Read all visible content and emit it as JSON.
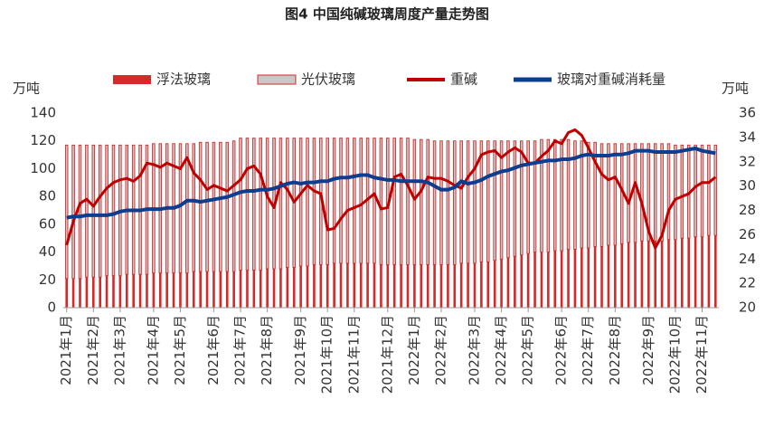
{
  "chart_data": {
    "type": "bar-line",
    "title": "图4 中国纯碱玻璃周度产量走势图",
    "ylabel": "万吨",
    "y2label": "万吨",
    "categories": [
      "2021年1月",
      null,
      null,
      null,
      "2021年2月",
      null,
      null,
      null,
      "2021年3月",
      null,
      null,
      null,
      null,
      "2021年4月",
      null,
      null,
      null,
      "2021年5月",
      null,
      null,
      null,
      null,
      "2021年6月",
      null,
      null,
      null,
      "2021年7月",
      null,
      null,
      null,
      "2021年8月",
      null,
      null,
      null,
      null,
      "2021年9月",
      null,
      null,
      null,
      "2021年10月",
      null,
      null,
      null,
      "2021年11月",
      null,
      null,
      null,
      null,
      "2021年12月",
      null,
      null,
      null,
      "2022年1月",
      null,
      null,
      null,
      "2022年2月",
      null,
      null,
      null,
      null,
      "2022年3月",
      null,
      null,
      null,
      "2022年4月",
      null,
      null,
      null,
      "2022年5月",
      null,
      null,
      null,
      null,
      "2022年6月",
      null,
      null,
      null,
      "2022年7月",
      null,
      null,
      null,
      "2022年8月",
      null,
      null,
      null,
      null,
      "2022年9月",
      null,
      null,
      null,
      "2022年10月",
      null,
      null,
      null,
      "2022年11月",
      null,
      null
    ],
    "ylim": [
      0,
      140
    ],
    "yticks": [
      0,
      20,
      40,
      60,
      80,
      100,
      120,
      140
    ],
    "y2lim": [
      20,
      36
    ],
    "y2ticks": [
      20,
      22,
      24,
      26,
      28,
      30,
      32,
      34,
      36
    ],
    "grid": false,
    "stacked": true,
    "legend": "top",
    "series": [
      {
        "name": "浮法玻璃",
        "kind": "bar",
        "color": "#d42a2a",
        "values": [
          21,
          21,
          21,
          22,
          22,
          22,
          23,
          23,
          23,
          24,
          24,
          24,
          24,
          25,
          25,
          25,
          25,
          25,
          25,
          26,
          26,
          26,
          26,
          26,
          26,
          26,
          27,
          27,
          27,
          27,
          28,
          28,
          28,
          29,
          29,
          30,
          30,
          31,
          31,
          31,
          32,
          32,
          32,
          32,
          32,
          32,
          32,
          31,
          31,
          31,
          31,
          31,
          31,
          31,
          31,
          31,
          31,
          31,
          31,
          32,
          32,
          32,
          33,
          33,
          34,
          35,
          36,
          37,
          38,
          39,
          40,
          40,
          40,
          41,
          41,
          42,
          42,
          43,
          43,
          44,
          44,
          45,
          45,
          46,
          47,
          47,
          48,
          48,
          48,
          48,
          49,
          49,
          50,
          50,
          51,
          51,
          52,
          52
        ]
      },
      {
        "name": "光伏玻璃",
        "kind": "bar",
        "color": "#c8c8c8",
        "edge": "#d42a2a",
        "values": [
          96,
          96,
          96,
          95,
          95,
          95,
          94,
          94,
          94,
          93,
          93,
          93,
          93,
          93,
          93,
          93,
          93,
          93,
          93,
          92,
          93,
          93,
          93,
          93,
          93,
          94,
          95,
          95,
          95,
          95,
          94,
          94,
          94,
          93,
          93,
          92,
          92,
          91,
          91,
          91,
          90,
          90,
          90,
          90,
          90,
          90,
          90,
          91,
          91,
          91,
          91,
          91,
          90,
          90,
          90,
          89,
          89,
          89,
          89,
          88,
          88,
          88,
          87,
          87,
          86,
          85,
          84,
          83,
          82,
          81,
          80,
          81,
          81,
          80,
          80,
          79,
          78,
          77,
          76,
          75,
          74,
          73,
          73,
          72,
          71,
          71,
          70,
          70,
          70,
          70,
          69,
          68,
          67,
          67,
          66,
          66,
          65,
          65
        ]
      },
      {
        "name": "重碱",
        "kind": "line",
        "color": "#c00000",
        "values": [
          45,
          62,
          75,
          78,
          73,
          80,
          86,
          90,
          92,
          93,
          91,
          95,
          104,
          103,
          101,
          104,
          102,
          100,
          108,
          97,
          92,
          85,
          88,
          86,
          84,
          88,
          92,
          100,
          102,
          96,
          80,
          72,
          90,
          85,
          76,
          82,
          88,
          84,
          82,
          56,
          57,
          64,
          70,
          72,
          74,
          78,
          82,
          71,
          72,
          94,
          96,
          88,
          78,
          84,
          94,
          93,
          93,
          91,
          88,
          86,
          94,
          100,
          110,
          112,
          113,
          108,
          112,
          115,
          112,
          104,
          104,
          109,
          113,
          120,
          118,
          126,
          128,
          124,
          115,
          105,
          96,
          92,
          94,
          85,
          75,
          90,
          75,
          55,
          43,
          52,
          70,
          78,
          80,
          82,
          87,
          90,
          90,
          94
        ]
      },
      {
        "name": "玻璃对重碱消耗量",
        "kind": "line",
        "axis": "y2",
        "color": "#0b3d91",
        "values": [
          27.4,
          27.5,
          27.5,
          27.6,
          27.6,
          27.6,
          27.6,
          27.7,
          27.9,
          28.0,
          28.0,
          28.0,
          28.1,
          28.1,
          28.1,
          28.2,
          28.2,
          28.4,
          28.8,
          28.8,
          28.7,
          28.8,
          28.9,
          29.0,
          29.1,
          29.3,
          29.5,
          29.6,
          29.6,
          29.7,
          29.7,
          29.8,
          30.0,
          30.2,
          30.3,
          30.2,
          30.3,
          30.3,
          30.4,
          30.4,
          30.6,
          30.7,
          30.7,
          30.8,
          30.9,
          30.9,
          30.7,
          30.6,
          30.5,
          30.5,
          30.4,
          30.4,
          30.4,
          30.4,
          30.3,
          30.0,
          29.7,
          29.7,
          29.9,
          30.4,
          30.2,
          30.3,
          30.5,
          30.8,
          31.0,
          31.2,
          31.3,
          31.5,
          31.7,
          31.8,
          31.9,
          32.0,
          32.1,
          32.1,
          32.2,
          32.2,
          32.3,
          32.5,
          32.6,
          32.5,
          32.5,
          32.5,
          32.6,
          32.6,
          32.7,
          32.9,
          32.9,
          32.9,
          32.8,
          32.8,
          32.8,
          32.8,
          32.9,
          33.0,
          33.1,
          32.9,
          32.8,
          32.7
        ]
      }
    ]
  }
}
